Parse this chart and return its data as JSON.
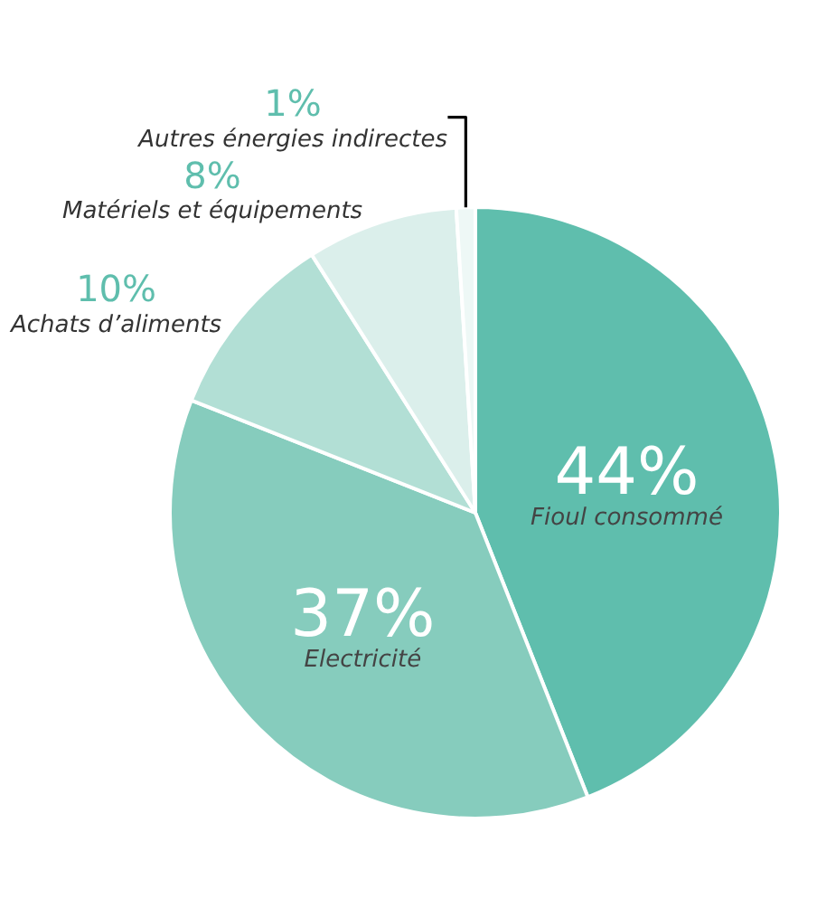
{
  "chart_data": {
    "type": "pie",
    "categories": [
      "Fioul consommé",
      "Electricité",
      "Achats d’aliments",
      "Matériels et équipements",
      "Autres énergies indirectes"
    ],
    "values": [
      44,
      37,
      10,
      8,
      1
    ],
    "value_labels": [
      "44%",
      "37%",
      "10%",
      "8%",
      "1%"
    ],
    "colors": [
      "#5fbead",
      "#86ccbd",
      "#b2dfd5",
      "#dbefeb",
      "#eef8f6"
    ],
    "legend": false
  }
}
